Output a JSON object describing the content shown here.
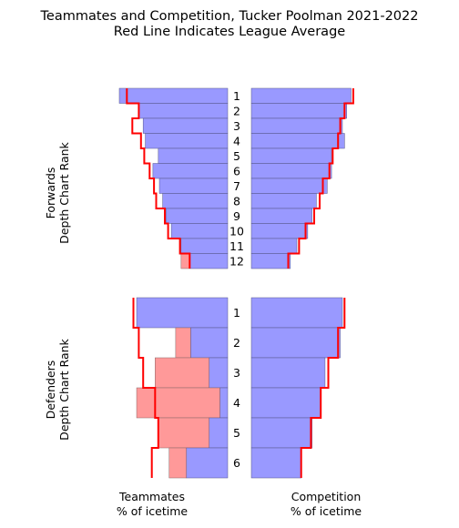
{
  "chart_data": {
    "type": "bar",
    "title": "Teammates and Competition, Tucker Poolman 2021-2022",
    "subtitle": "Red Line Indicates League Average",
    "left_xlabel": [
      "Teammates",
      "% of icetime"
    ],
    "right_xlabel": [
      "Competition",
      "% of icetime"
    ],
    "colors": {
      "player": "#9999ff",
      "player_edge": "#555588",
      "excess": "#ff9999",
      "league": "#ff0000"
    },
    "panels": [
      {
        "name": "forwards",
        "ylabel": [
          "Forwards",
          "Depth Chart Rank"
        ],
        "ranks": [
          "1",
          "2",
          "3",
          "4",
          "5",
          "6",
          "7",
          "8",
          "9",
          "10",
          "11",
          "12"
        ],
        "teammates_player": [
          100,
          82,
          78,
          76,
          64,
          69,
          63,
          60,
          57,
          52,
          43,
          35
        ],
        "teammates_excess": [
          0,
          0,
          0,
          0,
          0,
          0,
          0,
          0,
          0,
          0,
          0,
          8
        ],
        "teammates_league": [
          93,
          82,
          88,
          80,
          77,
          72,
          68,
          66,
          58,
          55,
          44,
          35
        ],
        "competition_player": [
          92,
          88,
          84,
          86,
          74,
          74,
          70,
          60,
          56,
          52,
          42,
          36
        ],
        "competition_league": [
          94,
          86,
          82,
          80,
          75,
          72,
          66,
          63,
          58,
          50,
          44,
          34
        ]
      },
      {
        "name": "defenders",
        "ylabel": [
          "Defenders",
          "Depth Chart Rank"
        ],
        "ranks": [
          "1",
          "2",
          "3",
          "4",
          "5",
          "6"
        ],
        "teammates_player": [
          84,
          34,
          17,
          7,
          17,
          38
        ],
        "teammates_excess": [
          0,
          14,
          50,
          77,
          47,
          16
        ],
        "teammates_league": [
          87,
          82,
          78,
          67,
          64,
          70
        ],
        "competition_player": [
          84,
          82,
          68,
          64,
          56,
          46
        ],
        "competition_league": [
          86,
          80,
          71,
          64,
          55,
          46
        ]
      }
    ]
  }
}
